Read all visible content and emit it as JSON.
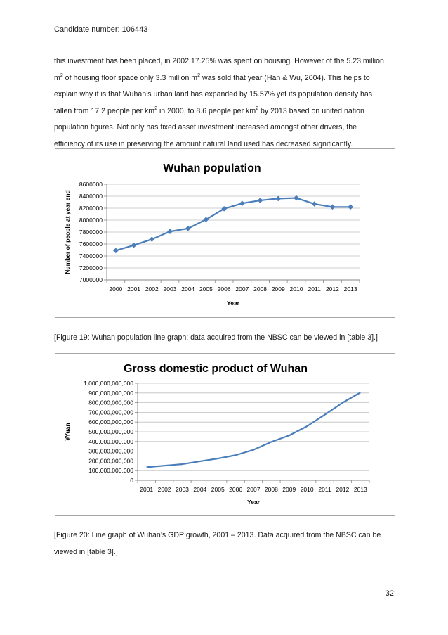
{
  "header": {
    "candidate": "Candidate number: 106443"
  },
  "paragraph": {
    "l1": "this investment has been placed, in 2002 17.25% was spent on housing. However of the 5.23 million",
    "l2_a": "m",
    "l2_sup1": "2",
    "l2_b": " of housing floor space only 3.3 million m",
    "l2_sup2": "2",
    "l2_c": " was sold that year (Han & Wu, 2004). This helps to",
    "l3": "explain why it is that Wuhan’s urban land has expanded by 15.57% yet its population density has",
    "l4_a": "fallen from 17.2 people per km",
    "l4_sup1": "2",
    "l4_b": " in 2000, to 8.6 people per km",
    "l4_sup2": "2",
    "l4_c": " by 2013 based on united nation",
    "l5": "population figures. Not only has fixed asset investment increased amongst other drivers, the",
    "l6": "efficiency of its use in preserving the amount natural land used has decreased significantly."
  },
  "caption1": "[Figure 19: Wuhan population line graph; data acquired from the NBSC can be viewed in [table 3].]",
  "caption2_l1": "[Figure 20: Line graph of Wuhan’s GDP growth, 2001 – 2013. Data acquired from the NBSC can be",
  "caption2_l2": "viewed in [table 3].]",
  "page_number": "32",
  "colors": {
    "series": "#4a7ebb",
    "grid": "#bfbfbf",
    "axis": "#868686"
  },
  "chart_data": [
    {
      "type": "line",
      "title": "Wuhan population",
      "xlabel": "Year",
      "ylabel": "Number of people at year end",
      "x": [
        "2000",
        "2001",
        "2002",
        "2003",
        "2004",
        "2005",
        "2006",
        "2007",
        "2008",
        "2009",
        "2010",
        "2011",
        "2012",
        "2013"
      ],
      "series": [
        {
          "name": "Population",
          "values": [
            7490000,
            7580000,
            7680000,
            7810000,
            7860000,
            8010000,
            8190000,
            8280000,
            8330000,
            8360000,
            8370000,
            8270000,
            8220000,
            8220000
          ]
        }
      ],
      "ylim": [
        7000000,
        8600000
      ],
      "yticks": [
        "7000000",
        "7200000",
        "7400000",
        "7600000",
        "7800000",
        "8000000",
        "8200000",
        "8400000",
        "8600000"
      ],
      "markers": true,
      "grid": true
    },
    {
      "type": "line",
      "title": "Gross domestic product of Wuhan",
      "xlabel": "Year",
      "ylabel": "¥Yuan",
      "x": [
        "2001",
        "2002",
        "2003",
        "2004",
        "2005",
        "2006",
        "2007",
        "2008",
        "2009",
        "2010",
        "2011",
        "2012",
        "2013"
      ],
      "series": [
        {
          "name": "GDP",
          "values": [
            135000000000,
            151000000000,
            166000000000,
            196000000000,
            224000000000,
            259000000000,
            314000000000,
            396000000000,
            462000000000,
            557000000000,
            676000000000,
            800000000000,
            905000000000
          ]
        }
      ],
      "ylim": [
        0,
        1000000000000
      ],
      "yticks": [
        "0",
        "100,000,000,000",
        "200,000,000,000",
        "300,000,000,000",
        "400,000,000,000",
        "500,000,000,000",
        "600,000,000,000",
        "700,000,000,000",
        "800,000,000,000",
        "900,000,000,000",
        "1,000,000,000,000"
      ],
      "markers": false,
      "grid": true
    }
  ]
}
